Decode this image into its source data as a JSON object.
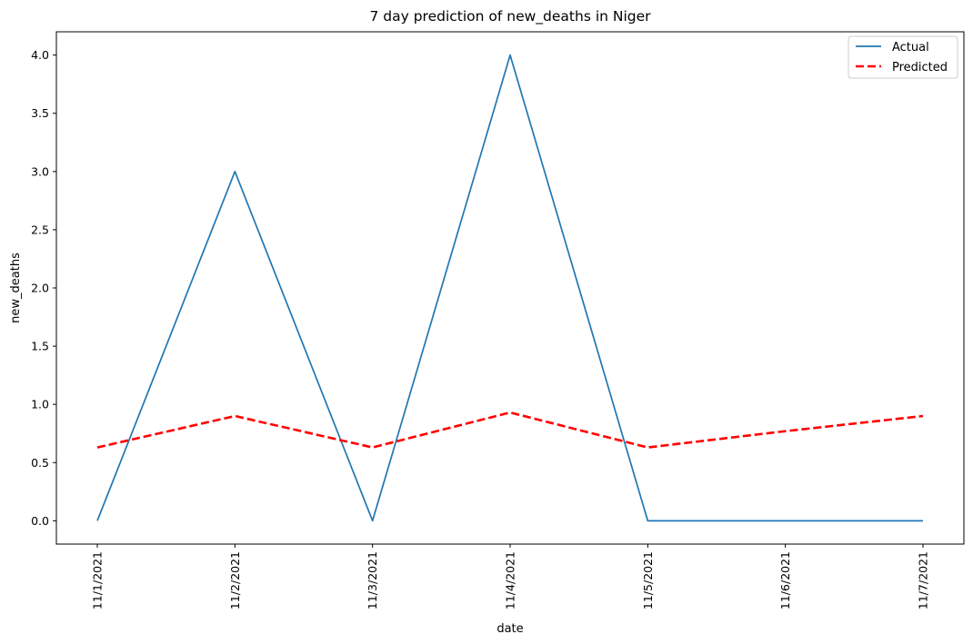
{
  "chart_data": {
    "type": "line",
    "title": "7 day prediction of new_deaths in Niger",
    "xlabel": "date",
    "ylabel": "new_deaths",
    "categories": [
      "11/1/2021",
      "11/2/2021",
      "11/3/2021",
      "11/4/2021",
      "11/5/2021",
      "11/6/2021",
      "11/7/2021"
    ],
    "ylim": [
      -0.2,
      4.2
    ],
    "yticks": [
      "0.0",
      "0.5",
      "1.0",
      "1.5",
      "2.0",
      "2.5",
      "3.0",
      "3.5",
      "4.0"
    ],
    "grid": false,
    "legend_position": "top-right",
    "series": [
      {
        "name": "Actual",
        "color": "#1f77b4",
        "style": "solid",
        "values": [
          0,
          3,
          0,
          4,
          0,
          0,
          0
        ]
      },
      {
        "name": "Predicted",
        "color": "#ff0000",
        "style": "dashed",
        "values": [
          0.63,
          0.9,
          0.63,
          0.93,
          0.63,
          0.77,
          0.9
        ]
      }
    ]
  }
}
